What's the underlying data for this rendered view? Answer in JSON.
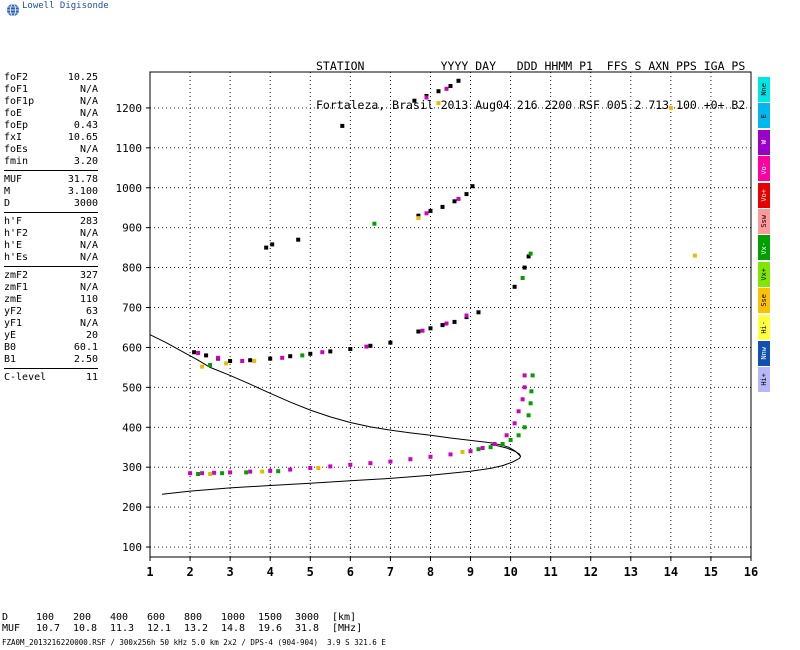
{
  "app": {
    "logo_text": "Lowell Digisonde"
  },
  "header": {
    "line1": "STATION           YYYY DAY   DDD HHMM P1  FFS S AXN PPS IGA PS",
    "line2": "Fortaleza, Brasil 2013 Aug04 216 2200 RSF 005 2 713 100 +0+ B2"
  },
  "params": {
    "group1": [
      {
        "label": "foF2",
        "value": "10.25"
      },
      {
        "label": "foF1",
        "value": "N/A"
      },
      {
        "label": "foF1p",
        "value": "N/A"
      },
      {
        "label": "foE",
        "value": "N/A"
      },
      {
        "label": "foEp",
        "value": "0.43"
      },
      {
        "label": "fxI",
        "value": "10.65"
      },
      {
        "label": "foEs",
        "value": "N/A"
      },
      {
        "label": "fmin",
        "value": "3.20"
      }
    ],
    "group2": [
      {
        "label": "MUF",
        "value": "31.78"
      },
      {
        "label": "M",
        "value": "3.100"
      },
      {
        "label": "D",
        "value": "3000"
      }
    ],
    "group3": [
      {
        "label": "h'F",
        "value": "283"
      },
      {
        "label": "h'F2",
        "value": "N/A"
      },
      {
        "label": "h'E",
        "value": "N/A"
      },
      {
        "label": "h'Es",
        "value": "N/A"
      }
    ],
    "group4": [
      {
        "label": "zmF2",
        "value": "327"
      },
      {
        "label": "zmF1",
        "value": "N/A"
      },
      {
        "label": "zmE",
        "value": "110"
      },
      {
        "label": "yF2",
        "value": "63"
      },
      {
        "label": "yF1",
        "value": "N/A"
      },
      {
        "label": "yE",
        "value": "20"
      },
      {
        "label": "B0",
        "value": "60.1"
      },
      {
        "label": "B1",
        "value": "2.50"
      }
    ],
    "group5": [
      {
        "label": "C-level",
        "value": "11"
      }
    ]
  },
  "legend": [
    {
      "label": "Nne",
      "color": "#00e5e5"
    },
    {
      "label": "E",
      "color": "#00b8f0"
    },
    {
      "label": "W",
      "color": "#9a00c8"
    },
    {
      "label": "Vo-",
      "color": "#ff00a0"
    },
    {
      "label": "Vo+",
      "color": "#e80000"
    },
    {
      "label": "Ssw",
      "color": "#ff9a9a"
    },
    {
      "label": "Vx-",
      "color": "#00a000"
    },
    {
      "label": "Vx+",
      "color": "#80e800"
    },
    {
      "label": "Sse",
      "color": "#ffc000"
    },
    {
      "label": "Hi-",
      "color": "#ffff40"
    },
    {
      "label": "Nnw",
      "color": "#1050b0"
    },
    {
      "label": "Hi+",
      "color": "#b8b8f8"
    }
  ],
  "footer": {
    "row1_label": "D",
    "row1_values": [
      "100",
      "200",
      "400",
      "600",
      "800",
      "1000",
      "1500",
      "3000"
    ],
    "row1_unit": "[km]",
    "row2_label": "MUF",
    "row2_values": [
      "10.7",
      "10.8",
      "11.3",
      "12.1",
      "13.2",
      "14.8",
      "19.6",
      "31.8"
    ],
    "row2_unit": "[MHz]",
    "filename": "FZA0M_2013216220000.RSF / 300x256h 50 kHz 5.0 km 2x2 / DPS-4 (904-904)  3.9 S 321.6 E"
  },
  "chart_data": {
    "type": "scatter",
    "xlim": [
      1,
      16
    ],
    "ylim": [
      75,
      1290
    ],
    "x_ticks": [
      1,
      2,
      3,
      4,
      5,
      6,
      7,
      8,
      9,
      10,
      11,
      12,
      13,
      14,
      15,
      16
    ],
    "y_ticks": [
      100,
      200,
      300,
      400,
      500,
      600,
      700,
      800,
      900,
      1000,
      1100,
      1200
    ],
    "grid": true,
    "x_of": [
      [
        10.25,
        327
      ],
      [
        10.12,
        340
      ],
      [
        9.95,
        350
      ],
      [
        9.75,
        356
      ],
      [
        9.5,
        361
      ],
      [
        9.0,
        367
      ],
      [
        8.5,
        373
      ],
      [
        8.0,
        380
      ],
      [
        7.5,
        386
      ],
      [
        7.0,
        393
      ],
      [
        6.5,
        401
      ],
      [
        6.0,
        412
      ],
      [
        5.5,
        426
      ],
      [
        5.0,
        443
      ],
      [
        4.5,
        463
      ],
      [
        4.0,
        485
      ],
      [
        3.5,
        508
      ],
      [
        3.0,
        530
      ],
      [
        2.5,
        550
      ],
      [
        2.2,
        568
      ],
      [
        1.8,
        590
      ],
      [
        1.4,
        612
      ],
      [
        1.0,
        632
      ]
    ],
    "o_trace_profile": [
      [
        1.3,
        232
      ],
      [
        2.0,
        240
      ],
      [
        3.0,
        248
      ],
      [
        4.0,
        254
      ],
      [
        5.0,
        260
      ],
      [
        6.0,
        266
      ],
      [
        7.0,
        272
      ],
      [
        8.0,
        280
      ],
      [
        9.0,
        290
      ],
      [
        9.5,
        297
      ],
      [
        9.8,
        304
      ],
      [
        10.05,
        313
      ],
      [
        10.22,
        322
      ],
      [
        10.25,
        327
      ],
      [
        10.22,
        333
      ],
      [
        10.1,
        340
      ],
      [
        9.9,
        348
      ],
      [
        9.7,
        353
      ],
      [
        9.5,
        357
      ]
    ],
    "series": [
      {
        "color": "#d000c0",
        "points": [
          [
            2.0,
            285
          ],
          [
            2.3,
            285
          ],
          [
            2.6,
            286
          ],
          [
            3.0,
            287
          ],
          [
            3.5,
            289
          ],
          [
            4.0,
            291
          ],
          [
            4.5,
            294
          ],
          [
            5.0,
            298
          ],
          [
            5.5,
            302
          ],
          [
            6.0,
            306
          ],
          [
            6.5,
            310
          ],
          [
            7.0,
            314
          ],
          [
            7.5,
            320
          ],
          [
            8.0,
            326
          ],
          [
            8.5,
            332
          ],
          [
            9.0,
            340
          ],
          [
            9.3,
            348
          ],
          [
            9.6,
            358
          ],
          [
            9.9,
            380
          ],
          [
            10.1,
            410
          ],
          [
            10.2,
            440
          ],
          [
            10.3,
            470
          ],
          [
            10.35,
            500
          ],
          [
            10.35,
            530
          ]
        ]
      },
      {
        "color": "#00a000",
        "points": [
          [
            2.2,
            283
          ],
          [
            2.8,
            285
          ],
          [
            3.4,
            287
          ],
          [
            4.2,
            290
          ],
          [
            9.2,
            345
          ],
          [
            9.5,
            350
          ],
          [
            9.8,
            358
          ],
          [
            10.0,
            368
          ],
          [
            10.2,
            380
          ],
          [
            10.35,
            400
          ],
          [
            10.45,
            430
          ],
          [
            10.5,
            460
          ],
          [
            10.52,
            490
          ],
          [
            10.55,
            530
          ]
        ]
      },
      {
        "color": "#d8c000",
        "points": [
          [
            2.5,
            283
          ],
          [
            3.8,
            289
          ],
          [
            5.2,
            298
          ],
          [
            8.8,
            338
          ]
        ]
      },
      {
        "color": "#000000",
        "points": [
          [
            2.1,
            588
          ],
          [
            2.4,
            580
          ],
          [
            2.7,
            572
          ],
          [
            3.0,
            566
          ],
          [
            3.5,
            568
          ],
          [
            4.0,
            572
          ],
          [
            4.5,
            578
          ],
          [
            5.0,
            584
          ],
          [
            5.5,
            590
          ],
          [
            6.0,
            596
          ],
          [
            6.5,
            604
          ],
          [
            7.0,
            612
          ],
          [
            7.7,
            640
          ],
          [
            8.0,
            648
          ],
          [
            8.3,
            656
          ],
          [
            8.6,
            664
          ],
          [
            8.9,
            676
          ],
          [
            9.2,
            688
          ],
          [
            7.7,
            930
          ],
          [
            8.0,
            942
          ],
          [
            8.3,
            952
          ],
          [
            8.6,
            966
          ],
          [
            8.9,
            984
          ],
          [
            9.05,
            1004
          ],
          [
            7.6,
            1218
          ],
          [
            7.9,
            1230
          ],
          [
            8.2,
            1242
          ],
          [
            8.5,
            1255
          ],
          [
            8.7,
            1268
          ],
          [
            3.9,
            850
          ],
          [
            4.05,
            858
          ],
          [
            4.7,
            870
          ],
          [
            10.1,
            752
          ],
          [
            10.35,
            800
          ],
          [
            10.45,
            828
          ],
          [
            5.8,
            1155
          ]
        ]
      },
      {
        "color": "#d000c0",
        "points": [
          [
            2.2,
            586
          ],
          [
            2.7,
            574
          ],
          [
            3.3,
            566
          ],
          [
            4.3,
            574
          ],
          [
            5.3,
            588
          ],
          [
            6.4,
            602
          ],
          [
            7.8,
            642
          ],
          [
            8.4,
            660
          ],
          [
            8.9,
            680
          ],
          [
            7.9,
            936
          ],
          [
            8.7,
            972
          ],
          [
            7.9,
            1226
          ],
          [
            8.4,
            1248
          ]
        ]
      },
      {
        "color": "#f0b800",
        "points": [
          [
            2.3,
            552
          ],
          [
            2.9,
            560
          ],
          [
            3.6,
            566
          ],
          [
            7.7,
            924
          ],
          [
            8.2,
            1212
          ],
          [
            14.0,
            1200
          ],
          [
            14.6,
            830
          ]
        ]
      },
      {
        "color": "#00a000",
        "points": [
          [
            2.5,
            556
          ],
          [
            4.8,
            580
          ],
          [
            6.6,
            910
          ],
          [
            10.3,
            774
          ],
          [
            10.5,
            835
          ]
        ]
      }
    ]
  }
}
